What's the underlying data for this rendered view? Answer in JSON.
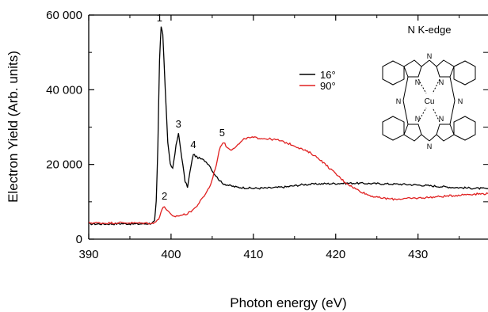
{
  "chart_data": {
    "type": "line",
    "xlabel": "Photon energy (eV)",
    "ylabel": "Electron Yield (Arb. units)",
    "xlim": [
      390,
      438.5
    ],
    "ylim": [
      0,
      60000
    ],
    "x_ticks": [
      390,
      400,
      410,
      420,
      430
    ],
    "y_ticks": [
      0,
      20000,
      40000,
      60000
    ],
    "x_tick_labels": [
      "390",
      "400",
      "410",
      "420",
      "430"
    ],
    "y_tick_labels": [
      "0",
      "20 000",
      "40 000",
      "60 000"
    ],
    "grid": false,
    "legend_position": "top-right",
    "series": [
      {
        "name": "16°",
        "color": "#000000",
        "points": [
          [
            390,
            4100
          ],
          [
            392,
            4050
          ],
          [
            394,
            4150
          ],
          [
            396,
            4050
          ],
          [
            397.5,
            4200
          ],
          [
            398.0,
            4800
          ],
          [
            398.2,
            10000
          ],
          [
            398.4,
            25000
          ],
          [
            398.6,
            48000
          ],
          [
            398.8,
            57000
          ],
          [
            399.0,
            55000
          ],
          [
            399.3,
            40000
          ],
          [
            399.6,
            26000
          ],
          [
            399.9,
            20000
          ],
          [
            400.2,
            19000
          ],
          [
            400.6,
            25000
          ],
          [
            400.9,
            28200
          ],
          [
            401.3,
            22000
          ],
          [
            401.7,
            15500
          ],
          [
            402.0,
            14000
          ],
          [
            402.3,
            18000
          ],
          [
            402.7,
            22800
          ],
          [
            403.1,
            22000
          ],
          [
            403.6,
            21500
          ],
          [
            404.1,
            21000
          ],
          [
            404.6,
            20000
          ],
          [
            405.1,
            18000
          ],
          [
            405.6,
            16500
          ],
          [
            406.2,
            15000
          ],
          [
            407,
            14400
          ],
          [
            408,
            13900
          ],
          [
            410,
            13600
          ],
          [
            412,
            13700
          ],
          [
            414,
            14000
          ],
          [
            416,
            14600
          ],
          [
            418,
            14800
          ],
          [
            420,
            14900
          ],
          [
            422,
            15000
          ],
          [
            424,
            14900
          ],
          [
            426,
            14800
          ],
          [
            428,
            14700
          ],
          [
            430,
            14500
          ],
          [
            432,
            14200
          ],
          [
            434,
            13900
          ],
          [
            436,
            13700
          ],
          [
            438.5,
            13500
          ]
        ]
      },
      {
        "name": "90°",
        "color": "#e02020",
        "points": [
          [
            390,
            4400
          ],
          [
            392,
            4300
          ],
          [
            394,
            4400
          ],
          [
            396,
            4300
          ],
          [
            398,
            4300
          ],
          [
            398.5,
            5500
          ],
          [
            398.9,
            8000
          ],
          [
            399.2,
            8700
          ],
          [
            399.6,
            7500
          ],
          [
            400.2,
            6000
          ],
          [
            401,
            6300
          ],
          [
            402,
            6800
          ],
          [
            403,
            8500
          ],
          [
            404,
            11500
          ],
          [
            404.8,
            14500
          ],
          [
            405.5,
            20000
          ],
          [
            406.0,
            25000
          ],
          [
            406.4,
            26000
          ],
          [
            406.8,
            24500
          ],
          [
            407.3,
            24000
          ],
          [
            408,
            25000
          ],
          [
            409,
            27000
          ],
          [
            410,
            27200
          ],
          [
            411,
            27000
          ],
          [
            412,
            26800
          ],
          [
            413,
            26500
          ],
          [
            414,
            25800
          ],
          [
            415,
            25000
          ],
          [
            416,
            24000
          ],
          [
            417,
            23000
          ],
          [
            418,
            21500
          ],
          [
            419,
            19500
          ],
          [
            420,
            17500
          ],
          [
            421,
            15500
          ],
          [
            422,
            14000
          ],
          [
            423,
            12800
          ],
          [
            424,
            11800
          ],
          [
            425,
            11200
          ],
          [
            426,
            10900
          ],
          [
            427,
            10700
          ],
          [
            428,
            10800
          ],
          [
            430,
            11000
          ],
          [
            432,
            11300
          ],
          [
            434,
            11600
          ],
          [
            436,
            12000
          ],
          [
            438.5,
            12200
          ]
        ]
      }
    ],
    "annotations": [
      {
        "text": "1",
        "x": 398.6,
        "y": 57500
      },
      {
        "text": "2",
        "x": 399.2,
        "y": 9800
      },
      {
        "text": "3",
        "x": 400.9,
        "y": 29000
      },
      {
        "text": "4",
        "x": 402.7,
        "y": 23500
      },
      {
        "text": "5",
        "x": 406.2,
        "y": 26700
      }
    ]
  },
  "inset": {
    "title": "N K-edge",
    "atom_labels": {
      "metal": "Cu",
      "nitrogen": "N"
    }
  }
}
